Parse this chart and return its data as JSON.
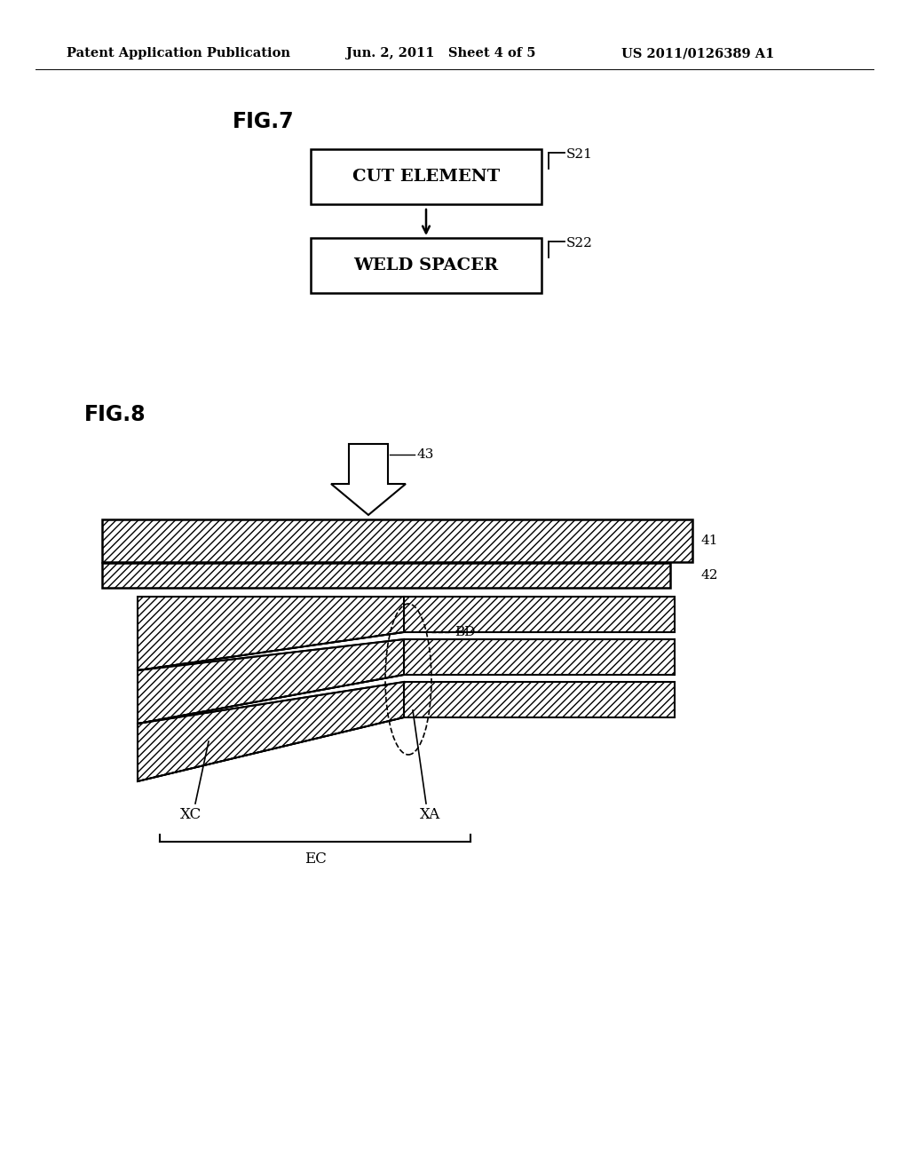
{
  "bg_color": "#ffffff",
  "header_left": "Patent Application Publication",
  "header_mid": "Jun. 2, 2011   Sheet 4 of 5",
  "header_right": "US 2011/0126389 A1",
  "fig7_label": "FIG.7",
  "fig8_label": "FIG.8",
  "box1_text": "CUT ELEMENT",
  "box1_label": "S21",
  "box2_text": "WELD SPACER",
  "box2_label": "S22",
  "label_41": "41",
  "label_42": "42",
  "label_43": "43",
  "label_BD": "BD",
  "label_XC": "XC",
  "label_XA": "XA",
  "label_EC": "EC"
}
